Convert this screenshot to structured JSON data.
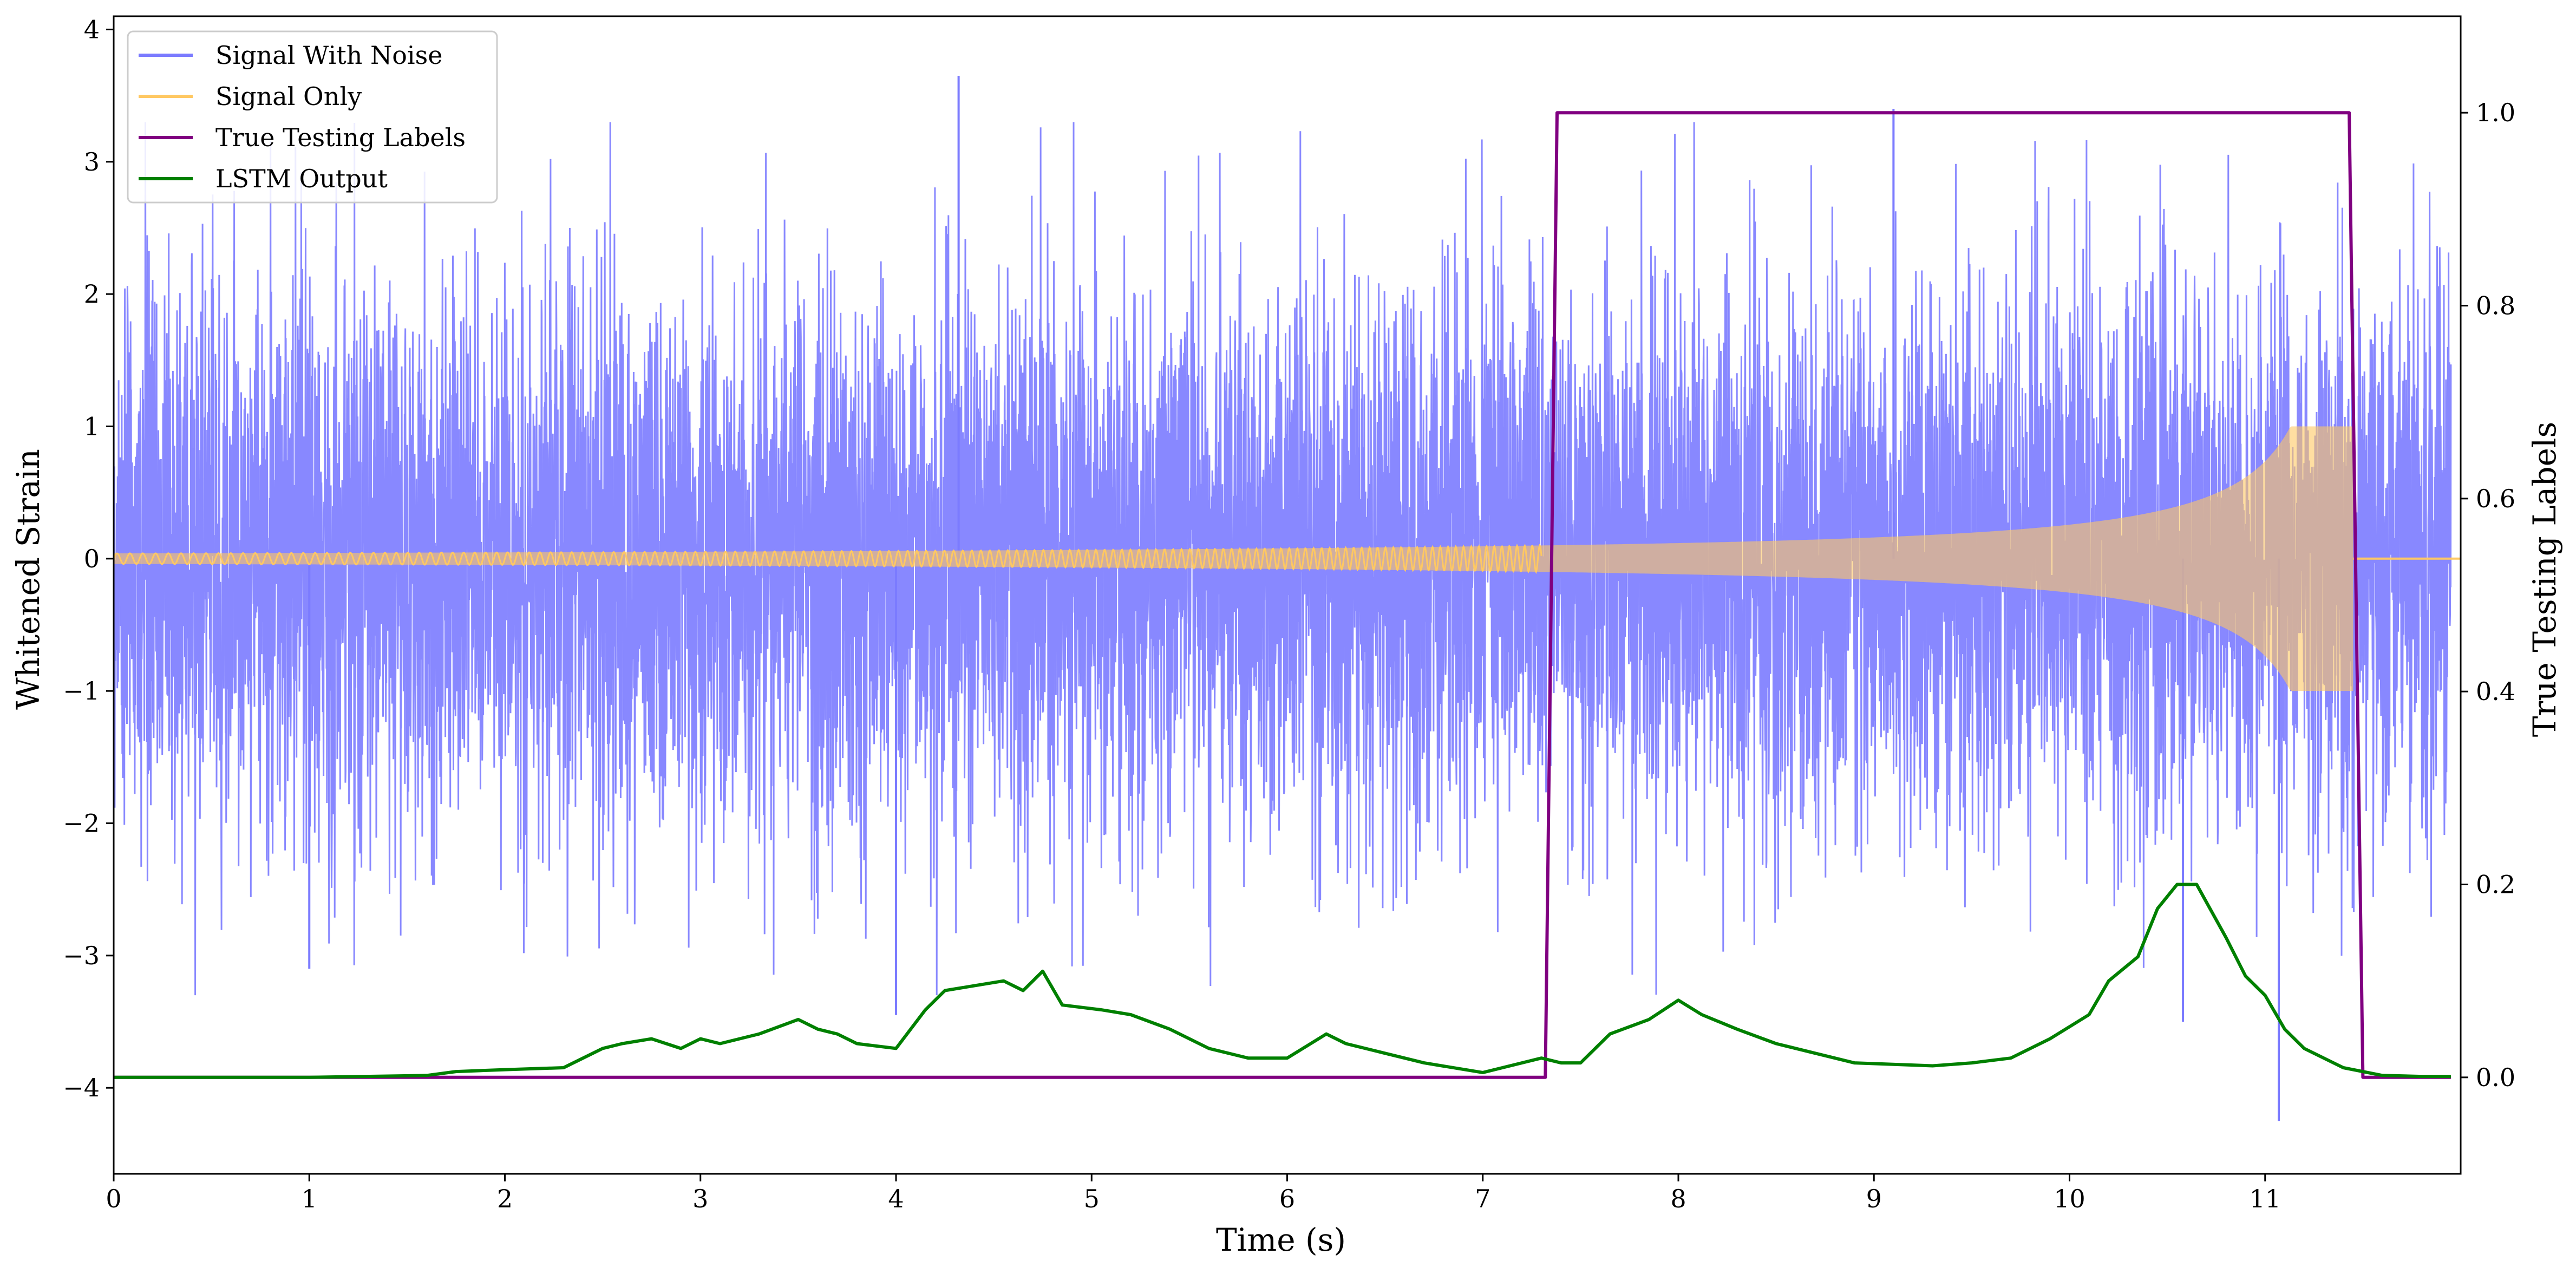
{
  "chart_data": {
    "type": "line",
    "title": "",
    "xlabel": "Time (s)",
    "ylabel": "Whitened Strain",
    "ylabel_right": "True Testing Labels",
    "xlim": [
      0,
      12
    ],
    "ylim": [
      -4.65,
      4.1
    ],
    "ylim_right": [
      -0.1,
      1.1
    ],
    "x_ticks": [
      0,
      1,
      2,
      3,
      4,
      5,
      6,
      7,
      8,
      9,
      10,
      11
    ],
    "x_tick_labels": [
      "0",
      "1",
      "2",
      "3",
      "4",
      "5",
      "6",
      "7",
      "8",
      "9",
      "10",
      "11"
    ],
    "y_ticks": [
      -4,
      -3,
      -2,
      -1,
      0,
      1,
      2,
      3,
      4
    ],
    "y_tick_labels": [
      "−4",
      "−3",
      "−2",
      "−1",
      "0",
      "1",
      "2",
      "3",
      "4"
    ],
    "y_right_ticks": [
      0.0,
      0.2,
      0.4,
      0.6,
      0.8,
      1.0
    ],
    "y_right_tick_labels": [
      "0.0",
      "0.2",
      "0.4",
      "0.6",
      "0.8",
      "1.0"
    ],
    "legend_position": "top-left",
    "grid": false,
    "series": [
      {
        "name": "Signal With Noise",
        "axis": "left",
        "color": "#7b7bff",
        "style": "noise",
        "typical_amplitude": 1.3,
        "extreme_values": [
          [
            4.32,
            3.65
          ],
          [
            9.1,
            3.4
          ],
          [
            1.0,
            -3.1
          ],
          [
            4.0,
            -3.45
          ],
          [
            10.58,
            -3.5
          ],
          [
            11.07,
            -4.25
          ]
        ]
      },
      {
        "name": "Signal Only",
        "axis": "left",
        "color": "#ffc862",
        "style": "chirp",
        "start_time": 0.0,
        "merger_time": 11.45,
        "initial_amplitude": 0.04,
        "peak_amplitude": 1.0
      },
      {
        "name": "True Testing Labels",
        "axis": "right",
        "color": "#800080",
        "x": [
          0,
          7.32,
          7.38,
          11.43,
          11.5,
          11.95
        ],
        "y": [
          0,
          0,
          1,
          1,
          0,
          0
        ]
      },
      {
        "name": "LSTM Output",
        "axis": "right",
        "color": "#008000",
        "x": [
          0,
          1,
          1.6,
          1.75,
          2,
          2.3,
          2.5,
          2.6,
          2.75,
          2.9,
          3.0,
          3.1,
          3.3,
          3.5,
          3.6,
          3.7,
          3.8,
          4.0,
          4.15,
          4.25,
          4.4,
          4.55,
          4.65,
          4.75,
          4.85,
          5.05,
          5.2,
          5.4,
          5.6,
          5.8,
          6.0,
          6.2,
          6.3,
          6.5,
          6.7,
          7.0,
          7.3,
          7.4,
          7.5,
          7.65,
          7.85,
          8.0,
          8.12,
          8.3,
          8.5,
          8.7,
          8.9,
          9.3,
          9.5,
          9.7,
          9.9,
          10.1,
          10.2,
          10.35,
          10.45,
          10.55,
          10.65,
          10.8,
          10.9,
          11.0,
          11.1,
          11.2,
          11.4,
          11.6,
          11.8,
          11.95
        ],
        "y": [
          0,
          0,
          0.002,
          0.006,
          0.008,
          0.01,
          0.03,
          0.035,
          0.04,
          0.03,
          0.04,
          0.035,
          0.045,
          0.06,
          0.05,
          0.045,
          0.035,
          0.03,
          0.07,
          0.09,
          0.095,
          0.1,
          0.09,
          0.11,
          0.075,
          0.07,
          0.065,
          0.05,
          0.03,
          0.02,
          0.02,
          0.045,
          0.035,
          0.025,
          0.015,
          0.005,
          0.02,
          0.015,
          0.015,
          0.045,
          0.06,
          0.08,
          0.065,
          0.05,
          0.035,
          0.025,
          0.015,
          0.012,
          0.015,
          0.02,
          0.04,
          0.065,
          0.1,
          0.125,
          0.175,
          0.2,
          0.2,
          0.145,
          0.105,
          0.085,
          0.05,
          0.03,
          0.01,
          0.002,
          0.001,
          0.001
        ]
      }
    ]
  }
}
